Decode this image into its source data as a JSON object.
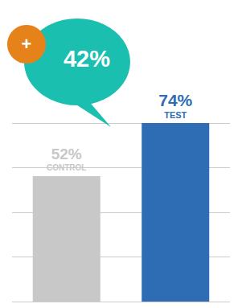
{
  "chart_data": {
    "type": "bar",
    "categories": [
      "CONTROL",
      "TEST"
    ],
    "values": [
      52,
      74
    ],
    "value_labels": [
      "52%",
      "74%"
    ],
    "colors": [
      "#c8c8c8",
      "#2e6db4"
    ],
    "ylim": [
      0,
      74
    ],
    "yticks": [
      0,
      18.5,
      37,
      55.5,
      74
    ],
    "grid": true,
    "tick_labels": false,
    "data_labels": true,
    "annotations": [
      "42%",
      "+"
    ]
  }
}
